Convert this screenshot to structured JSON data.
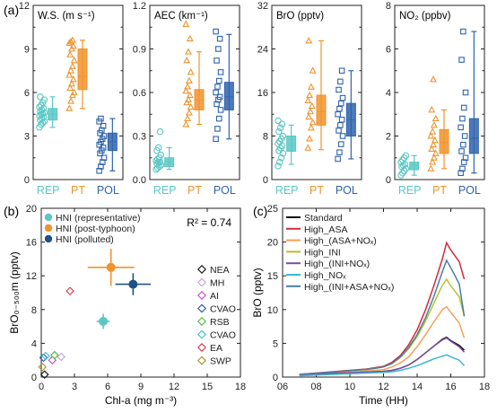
{
  "panel_labels": {
    "a": "(a)",
    "b": "(b)",
    "c": "(c)"
  },
  "colors": {
    "REP": "#5bc7c4",
    "PT": "#f0932b",
    "POL": "#2f63ad",
    "axis": "#222222"
  },
  "chart_data": [
    {
      "type": "box",
      "panel": "a1",
      "title": "W.S. (m s⁻¹)",
      "categories": [
        "REP",
        "PT",
        "POL"
      ],
      "ylim": [
        0,
        12
      ],
      "yticks": [
        "0",
        "3",
        "6",
        "9",
        "12"
      ],
      "boxes": [
        {
          "name": "REP",
          "whisker_low": 3.6,
          "q1": 4.1,
          "median": 4.5,
          "q3": 4.9,
          "whisker_high": 5.7,
          "points": [
            3.6,
            3.8,
            3.9,
            4.0,
            4.1,
            4.2,
            4.3,
            4.4,
            4.5,
            4.5,
            4.6,
            4.7,
            4.8,
            4.9,
            5.0,
            5.1,
            5.3,
            5.5,
            5.7
          ]
        },
        {
          "name": "PT",
          "whisker_low": 4.9,
          "q1": 6.2,
          "median": 7.1,
          "q3": 9.0,
          "whisker_high": 9.6,
          "points": [
            4.9,
            5.4,
            5.8,
            6.0,
            6.3,
            6.6,
            6.9,
            7.2,
            7.5,
            7.8,
            8.2,
            8.6,
            9.0,
            9.2,
            9.4,
            9.5,
            9.6
          ]
        },
        {
          "name": "POL",
          "whisker_low": 0.6,
          "q1": 2.0,
          "median": 2.6,
          "q3": 3.2,
          "whisker_high": 4.2,
          "points": [
            0.6,
            0.9,
            1.2,
            1.5,
            1.8,
            2.0,
            2.2,
            2.4,
            2.6,
            2.8,
            3.0,
            3.2,
            3.4,
            3.7,
            4.0,
            4.2
          ]
        }
      ]
    },
    {
      "type": "box",
      "panel": "a2",
      "title": "AEC (km⁻¹)",
      "categories": [
        "REP",
        "PT",
        "POL"
      ],
      "ylim": [
        0.0,
        1.2
      ],
      "yticks": [
        "0.0",
        "0.3",
        "0.6",
        "0.9",
        "1.2"
      ],
      "boxes": [
        {
          "name": "REP",
          "whisker_low": 0.07,
          "q1": 0.09,
          "median": 0.12,
          "q3": 0.15,
          "whisker_high": 0.22,
          "points": [
            0.07,
            0.08,
            0.09,
            0.1,
            0.11,
            0.12,
            0.12,
            0.13,
            0.14,
            0.15,
            0.17,
            0.2,
            0.22,
            0.33
          ]
        },
        {
          "name": "PT",
          "whisker_low": 0.38,
          "q1": 0.48,
          "median": 0.55,
          "q3": 0.62,
          "whisker_high": 0.88,
          "points": [
            0.38,
            0.42,
            0.46,
            0.5,
            0.53,
            0.55,
            0.58,
            0.61,
            0.64,
            0.68,
            0.74,
            0.82,
            0.88,
            0.97,
            1.07
          ]
        },
        {
          "name": "POL",
          "whisker_low": 0.28,
          "q1": 0.48,
          "median": 0.57,
          "q3": 0.67,
          "whisker_high": 1.0,
          "points": [
            0.28,
            0.35,
            0.42,
            0.48,
            0.52,
            0.55,
            0.57,
            0.6,
            0.64,
            0.68,
            0.74,
            0.82,
            0.9,
            0.97,
            1.02
          ]
        }
      ]
    },
    {
      "type": "box",
      "panel": "a3",
      "title": "BrO (pptv)",
      "categories": [
        "REP",
        "PT",
        "POL"
      ],
      "ylim": [
        0,
        32
      ],
      "yticks": [
        "0",
        "8",
        "16",
        "24",
        "32"
      ],
      "boxes": [
        {
          "name": "REP",
          "whisker_low": 2.8,
          "q1": 5.2,
          "median": 6.5,
          "q3": 8.0,
          "whisker_high": 10.0,
          "points": [
            2.5,
            3.2,
            4.0,
            4.8,
            5.3,
            5.8,
            6.2,
            6.6,
            7.0,
            7.5,
            8.0,
            8.8,
            9.5,
            10.2,
            10.8
          ]
        },
        {
          "name": "PT",
          "whisker_low": 5.5,
          "q1": 10.0,
          "median": 12.5,
          "q3": 15.5,
          "whisker_high": 25.5,
          "points": [
            5.8,
            7.5,
            9.5,
            10.5,
            11.5,
            12.5,
            13.5,
            14.5,
            15.5,
            17.0,
            20.0,
            25.5
          ]
        },
        {
          "name": "POL",
          "whisker_low": 3.8,
          "q1": 8.0,
          "median": 11.0,
          "q3": 14.0,
          "whisker_high": 20.0,
          "points": [
            3.8,
            5.0,
            6.5,
            8.0,
            9.0,
            10.0,
            11.0,
            12.0,
            13.0,
            14.0,
            15.0,
            16.5,
            18.0,
            20.0
          ]
        }
      ]
    },
    {
      "type": "box",
      "panel": "a4",
      "title": "NO₂ (ppbv)",
      "categories": [
        "REP",
        "PT",
        "POL"
      ],
      "ylim": [
        0,
        8
      ],
      "yticks": [
        "0",
        "2",
        "4",
        "6",
        "8"
      ],
      "boxes": [
        {
          "name": "REP",
          "whisker_low": 0.2,
          "q1": 0.45,
          "median": 0.65,
          "q3": 0.8,
          "whisker_high": 1.1,
          "points": [
            0.2,
            0.3,
            0.4,
            0.5,
            0.6,
            0.65,
            0.7,
            0.8,
            0.9,
            1.0,
            1.1
          ]
        },
        {
          "name": "PT",
          "whisker_low": 0.5,
          "q1": 1.2,
          "median": 1.7,
          "q3": 2.3,
          "whisker_high": 3.2,
          "points": [
            0.5,
            0.8,
            1.0,
            1.2,
            1.4,
            1.6,
            1.8,
            2.0,
            2.2,
            2.5,
            2.8,
            3.2,
            4.6
          ]
        },
        {
          "name": "POL",
          "whisker_low": 0.3,
          "q1": 1.2,
          "median": 1.9,
          "q3": 2.8,
          "whisker_high": 6.8,
          "points": [
            0.3,
            0.5,
            0.8,
            1.0,
            1.3,
            1.6,
            2.0,
            2.4,
            2.8,
            3.3,
            4.0,
            5.5,
            6.8
          ]
        }
      ]
    },
    {
      "type": "scatter",
      "panel": "b",
      "xlabel": "Chl-a (mg m⁻³)",
      "ylabel": "BrO₀₋₅₀₀m (pptv)",
      "xlim": [
        0,
        18
      ],
      "ylim": [
        0,
        20
      ],
      "xticks": [
        "0",
        "3",
        "6",
        "9",
        "12",
        "15",
        "18"
      ],
      "yticks": [
        "0",
        "4",
        "8",
        "12",
        "16",
        "20"
      ],
      "annotation": "R² = 0.74",
      "hni_legend": [
        "HNI (representative)",
        "HNI (post-typhoon)",
        "HNI (polluted)"
      ],
      "hni": [
        {
          "name": "HNI (representative)",
          "x": 5.6,
          "y": 6.6,
          "xerr": 0.6,
          "yerr": 0.9,
          "color": "#5bc7c4"
        },
        {
          "name": "HNI (post-typhoon)",
          "x": 6.3,
          "y": 13.0,
          "xerr": 2.1,
          "yerr": 2.2,
          "color": "#f0932b"
        },
        {
          "name": "HNI (polluted)",
          "x": 8.3,
          "y": 11.0,
          "xerr": 1.6,
          "yerr": 1.3,
          "color": "#1d5287"
        }
      ],
      "sites": [
        {
          "name": "NEA",
          "x": 0.3,
          "y": 0.3,
          "color": "#111111"
        },
        {
          "name": "MH",
          "x": 1.8,
          "y": 2.4,
          "color": "#c9a0d9"
        },
        {
          "name": "AI",
          "x": 1.0,
          "y": 2.0,
          "color": "#c04fc9"
        },
        {
          "name": "CVAO",
          "x": 0.2,
          "y": 2.3,
          "color": "#2c55a8"
        },
        {
          "name": "RSB",
          "x": 1.2,
          "y": 2.6,
          "color": "#52b83e"
        },
        {
          "name": "CVAO",
          "x": 0.4,
          "y": 2.5,
          "color": "#33c2d6"
        },
        {
          "name": "EA",
          "x": 2.6,
          "y": 10.2,
          "color": "#d6334a"
        },
        {
          "name": "SWP",
          "x": 0.1,
          "y": 1.2,
          "color": "#a8941e"
        }
      ]
    },
    {
      "type": "line",
      "panel": "c",
      "xlabel": "Time (HH)",
      "ylabel": "BrO (pptv)",
      "xlim": [
        6,
        18
      ],
      "ylim": [
        0,
        25
      ],
      "xticks": [
        "06",
        "08",
        "10",
        "12",
        "14",
        "16",
        "18"
      ],
      "yticks": [
        "0",
        "5",
        "10",
        "15",
        "20",
        "25"
      ],
      "x": [
        7,
        7.5,
        8,
        8.5,
        9,
        9.5,
        10,
        10.5,
        11,
        11.5,
        12,
        12.5,
        13,
        13.5,
        14,
        14.5,
        15,
        15.5,
        15.75,
        16,
        16.5,
        16.8
      ],
      "series": [
        {
          "name": "Standard",
          "color": "#111111",
          "values": [
            0.3,
            0.35,
            0.45,
            0.5,
            0.55,
            0.6,
            0.65,
            0.7,
            0.75,
            0.8,
            0.85,
            1.0,
            1.3,
            1.8,
            2.6,
            3.6,
            4.6,
            5.6,
            5.9,
            5.4,
            4.7,
            4.0
          ]
        },
        {
          "name": "High_ASA",
          "color": "#d42a3a",
          "values": [
            0.4,
            0.5,
            0.6,
            0.7,
            0.8,
            0.9,
            1.0,
            1.1,
            1.2,
            1.4,
            1.6,
            2.2,
            3.2,
            4.8,
            7.0,
            10.0,
            13.6,
            17.5,
            19.9,
            18.8,
            17.1,
            14.5
          ]
        },
        {
          "name": "High_(ASA+NOₓ)",
          "color": "#f4a05a",
          "values": [
            0.3,
            0.35,
            0.45,
            0.5,
            0.55,
            0.6,
            0.7,
            0.8,
            0.9,
            1.0,
            1.1,
            1.5,
            2.1,
            3.0,
            4.5,
            6.3,
            8.2,
            10.0,
            10.4,
            9.6,
            8.0,
            5.8
          ]
        },
        {
          "name": "High_INI",
          "color": "#b3c22a",
          "values": [
            0.4,
            0.5,
            0.55,
            0.6,
            0.7,
            0.8,
            0.9,
            1.0,
            1.1,
            1.3,
            1.5,
            2.0,
            2.9,
            4.2,
            6.0,
            8.3,
            11.0,
            13.6,
            14.5,
            13.5,
            11.9,
            9.0
          ]
        },
        {
          "name": "High_(INI+NOₓ)",
          "color": "#7a4fa0",
          "values": [
            0.3,
            0.35,
            0.45,
            0.5,
            0.55,
            0.6,
            0.65,
            0.7,
            0.75,
            0.8,
            0.85,
            1.0,
            1.3,
            1.8,
            2.6,
            3.6,
            4.6,
            5.5,
            5.8,
            5.3,
            4.5,
            3.7
          ]
        },
        {
          "name": "High_NOₓ",
          "color": "#3db5d6",
          "values": [
            0.2,
            0.25,
            0.3,
            0.35,
            0.4,
            0.45,
            0.5,
            0.55,
            0.6,
            0.65,
            0.7,
            0.8,
            1.0,
            1.3,
            1.7,
            2.2,
            2.7,
            3.1,
            3.3,
            3.0,
            2.5,
            1.7
          ]
        },
        {
          "name": "High_(INI+ASA+NOₓ)",
          "color": "#4a7ea6",
          "values": [
            0.4,
            0.5,
            0.55,
            0.65,
            0.75,
            0.85,
            0.95,
            1.05,
            1.15,
            1.3,
            1.5,
            2.0,
            3.0,
            4.4,
            6.3,
            8.8,
            12.0,
            15.6,
            17.3,
            16.2,
            13.8,
            9.0
          ]
        }
      ]
    }
  ]
}
